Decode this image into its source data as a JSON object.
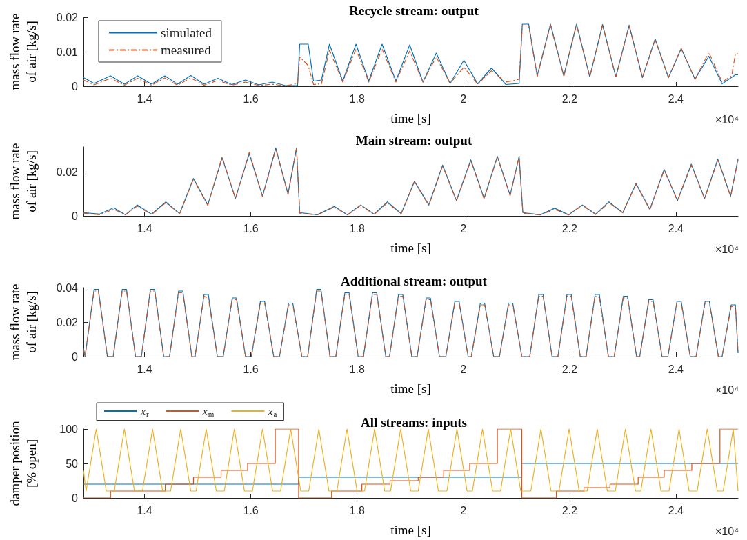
{
  "chart_data": [
    {
      "type": "line",
      "title": "Recycle stream: output",
      "xlabel": "time [s]",
      "ylabel": "mass flow rate of air [kg/s]",
      "xlim": [
        1.285,
        2.517
      ],
      "xticks": [
        1.4,
        1.6,
        1.8,
        2,
        2.2,
        2.4
      ],
      "ylim": [
        0,
        0.02
      ],
      "yticks": [
        0,
        0.01,
        0.02
      ],
      "legend": "top left",
      "marker": "none",
      "annotations": [
        "×10⁴"
      ],
      "series": [
        {
          "name": "simulated",
          "color": "#0072bd",
          "line_style": "solid",
          "x": [
            1.285,
            1.305,
            1.336,
            1.362,
            1.387,
            1.413,
            1.438,
            1.462,
            1.487,
            1.512,
            1.538,
            1.564,
            1.59,
            1.615,
            1.64,
            1.665,
            1.688,
            1.692,
            1.708,
            1.718,
            1.733,
            1.748,
            1.773,
            1.798,
            1.822,
            1.847,
            1.873,
            1.899,
            1.924,
            1.949,
            1.975,
            2.001,
            2.027,
            2.053,
            2.08,
            2.105,
            2.111,
            2.123,
            2.139,
            2.164,
            2.189,
            2.213,
            2.238,
            2.262,
            2.287,
            2.312,
            2.337,
            2.361,
            2.386,
            2.41,
            2.436,
            2.462,
            2.487,
            2.512,
            2.517
          ],
          "values": [
            0.0025,
            0.0008,
            0.003,
            0.0006,
            0.003,
            0.0006,
            0.003,
            0.0006,
            0.0031,
            0.0006,
            0.0023,
            0.0005,
            0.0018,
            0.0004,
            0.0012,
            0.0002,
            0.0002,
            0.0122,
            0.0122,
            0.0015,
            0.0018,
            0.0122,
            0.0015,
            0.0122,
            0.0015,
            0.0122,
            0.0015,
            0.012,
            0.0012,
            0.0096,
            0.0008,
            0.0075,
            0.0007,
            0.0053,
            0.0005,
            0.0008,
            0.018,
            0.018,
            0.003,
            0.018,
            0.003,
            0.018,
            0.0027,
            0.0179,
            0.0027,
            0.0177,
            0.0025,
            0.0137,
            0.0025,
            0.0109,
            0.002,
            0.0087,
            0.0007,
            0.0033,
            0.0033
          ]
        },
        {
          "name": "measured",
          "color": "#d95319",
          "line_style": "dashed",
          "x": [
            1.285,
            1.305,
            1.336,
            1.362,
            1.387,
            1.413,
            1.438,
            1.462,
            1.487,
            1.512,
            1.538,
            1.564,
            1.59,
            1.615,
            1.64,
            1.665,
            1.688,
            1.692,
            1.708,
            1.718,
            1.733,
            1.748,
            1.773,
            1.798,
            1.822,
            1.847,
            1.873,
            1.899,
            1.924,
            1.949,
            1.975,
            2.001,
            2.027,
            2.053,
            2.08,
            2.105,
            2.111,
            2.123,
            2.139,
            2.164,
            2.189,
            2.213,
            2.238,
            2.262,
            2.287,
            2.312,
            2.337,
            2.361,
            2.386,
            2.41,
            2.436,
            2.462,
            2.487,
            2.505,
            2.512,
            2.517
          ],
          "values": [
            0.0018,
            0.0004,
            0.0023,
            0.0003,
            0.0023,
            0.0003,
            0.0024,
            0.0003,
            0.0024,
            0.0003,
            0.0017,
            0.0003,
            0.0012,
            0.0002,
            0.0006,
            0.0001,
            0.0008,
            0.0085,
            0.006,
            0.0005,
            0.0007,
            0.0105,
            0.0012,
            0.0108,
            0.0012,
            0.0108,
            0.0012,
            0.0102,
            0.0012,
            0.0085,
            0.0008,
            0.0055,
            0.0006,
            0.0045,
            0.0012,
            0.002,
            0.0175,
            0.0175,
            0.0028,
            0.0178,
            0.0028,
            0.0178,
            0.0027,
            0.0176,
            0.0027,
            0.0175,
            0.0025,
            0.0135,
            0.0025,
            0.011,
            0.002,
            0.0098,
            0.0012,
            0.003,
            0.0094,
            0.0094
          ]
        }
      ]
    },
    {
      "type": "line",
      "title": "Main stream: output",
      "xlabel": "time [s]",
      "ylabel": "mass flow rate of air [kg/s]",
      "xlim": [
        1.285,
        2.517
      ],
      "xticks": [
        1.4,
        1.6,
        1.8,
        2,
        2.2,
        2.4
      ],
      "ylim": [
        0,
        0.0315
      ],
      "yticks": [
        0,
        0.02
      ],
      "marker": "none",
      "annotations": [
        "×10⁴"
      ],
      "x": [
        1.285,
        1.315,
        1.342,
        1.364,
        1.386,
        1.413,
        1.44,
        1.466,
        1.492,
        1.519,
        1.546,
        1.571,
        1.597,
        1.622,
        1.647,
        1.67,
        1.686,
        1.692,
        1.725,
        1.757,
        1.782,
        1.807,
        1.832,
        1.857,
        1.883,
        1.908,
        1.935,
        1.961,
        1.987,
        2.014,
        2.039,
        2.064,
        2.088,
        2.105,
        2.112,
        2.145,
        2.172,
        2.198,
        2.224,
        2.249,
        2.274,
        2.3,
        2.325,
        2.351,
        2.378,
        2.403,
        2.429,
        2.454,
        2.479,
        2.503,
        2.517
      ],
      "series": [
        {
          "color": "#0072bd",
          "line_style": "solid",
          "values": [
            0.0015,
            0.0008,
            0.0037,
            0.0005,
            0.005,
            0.0008,
            0.0064,
            0.001,
            0.0171,
            0.005,
            0.0265,
            0.008,
            0.0284,
            0.009,
            0.031,
            0.01,
            0.031,
            0.0015,
            0.0005,
            0.0043,
            0.0005,
            0.005,
            0.0008,
            0.0064,
            0.001,
            0.0158,
            0.005,
            0.0232,
            0.007,
            0.0256,
            0.008,
            0.0272,
            0.0094,
            0.0272,
            0.0015,
            0.0005,
            0.0035,
            0.0005,
            0.005,
            0.0008,
            0.0064,
            0.0015,
            0.0148,
            0.003,
            0.0212,
            0.007,
            0.0236,
            0.008,
            0.026,
            0.009,
            0.026
          ]
        },
        {
          "color": "#d95319",
          "line_style": "dashed",
          "values": [
            0.0012,
            0.0005,
            0.003,
            0.0004,
            0.0045,
            0.0006,
            0.006,
            0.001,
            0.0168,
            0.0048,
            0.027,
            0.0078,
            0.029,
            0.0088,
            0.0305,
            0.0098,
            0.031,
            0.0012,
            0.0004,
            0.004,
            0.0004,
            0.0048,
            0.0006,
            0.006,
            0.001,
            0.0155,
            0.0048,
            0.0228,
            0.0068,
            0.0252,
            0.0078,
            0.0268,
            0.0092,
            0.027,
            0.0012,
            0.0004,
            0.003,
            0.0004,
            0.0048,
            0.0006,
            0.006,
            0.0014,
            0.0145,
            0.0028,
            0.021,
            0.0068,
            0.0232,
            0.0078,
            0.0255,
            0.0088,
            0.0255
          ]
        }
      ]
    },
    {
      "type": "line",
      "title": "Additional stream: output",
      "xlabel": "time [s]",
      "ylabel": "mass flow rate of air [kg/s]",
      "xlim": [
        1.285,
        2.517
      ],
      "xticks": [
        1.4,
        1.6,
        1.8,
        2,
        2.2,
        2.4
      ],
      "ylim": [
        0,
        0.04
      ],
      "yticks": [
        0,
        0.02,
        0.04
      ],
      "marker": "none",
      "annotations": [
        "×10⁴"
      ],
      "x": [
        1.285,
        1.288,
        1.305,
        1.313,
        1.33,
        1.341,
        1.358,
        1.366,
        1.383,
        1.394,
        1.411,
        1.419,
        1.436,
        1.447,
        1.464,
        1.472,
        1.489,
        1.495,
        1.512,
        1.52,
        1.537,
        1.548,
        1.565,
        1.573,
        1.59,
        1.601,
        1.618,
        1.626,
        1.643,
        1.654,
        1.671,
        1.679,
        1.696,
        1.707,
        1.724,
        1.732,
        1.749,
        1.76,
        1.777,
        1.785,
        1.802,
        1.812,
        1.829,
        1.837,
        1.854,
        1.861,
        1.878,
        1.886,
        1.903,
        1.913,
        1.93,
        1.938,
        1.955,
        1.967,
        1.984,
        1.992,
        2.009,
        2.015,
        2.032,
        2.04,
        2.057,
        2.068,
        2.085,
        2.093,
        2.11,
        2.125,
        2.142,
        2.15,
        2.167,
        2.178,
        2.195,
        2.203,
        2.22,
        2.231,
        2.248,
        2.256,
        2.273,
        2.284,
        2.301,
        2.309,
        2.326,
        2.332,
        2.349,
        2.357,
        2.374,
        2.385,
        2.402,
        2.41,
        2.427,
        2.438,
        2.455,
        2.463,
        2.48,
        2.487,
        2.504,
        2.512,
        2.517
      ],
      "series": [
        {
          "color": "#0072bd",
          "line_style": "solid",
          "values": [
            0.005,
            0,
            0.039,
            0.039,
            0,
            0,
            0.039,
            0.039,
            0,
            0,
            0.039,
            0.039,
            0,
            0,
            0.038,
            0.038,
            0,
            0,
            0.036,
            0.036,
            0,
            0,
            0.034,
            0.034,
            0,
            0,
            0.032,
            0.032,
            0,
            0,
            0.031,
            0.031,
            0,
            0,
            0.039,
            0.039,
            0,
            0,
            0.037,
            0.037,
            0,
            0,
            0.037,
            0.037,
            0,
            0,
            0.036,
            0.036,
            0,
            0,
            0.034,
            0.034,
            0,
            0,
            0.032,
            0.032,
            0,
            0,
            0.031,
            0.031,
            0,
            0,
            0.031,
            0.031,
            0,
            0,
            0.036,
            0.036,
            0,
            0,
            0.036,
            0.036,
            0,
            0,
            0.036,
            0.036,
            0,
            0,
            0.035,
            0.035,
            0,
            0,
            0.033,
            0.033,
            0,
            0,
            0.032,
            0.032,
            0,
            0,
            0.032,
            0.032,
            0,
            0,
            0.03,
            0.03,
            0.002
          ]
        },
        {
          "color": "#d95319",
          "line_style": "dashed",
          "values": [
            0.004,
            0,
            0.038,
            0.038,
            0,
            0,
            0.038,
            0.038,
            0,
            0,
            0.038,
            0.038,
            0,
            0,
            0.037,
            0.037,
            0,
            0,
            0.035,
            0.034,
            0,
            0,
            0.033,
            0.033,
            0,
            0,
            0.031,
            0.031,
            0,
            0,
            0.03,
            0.03,
            0,
            0,
            0.038,
            0.038,
            0,
            0,
            0.036,
            0.036,
            0,
            0,
            0.036,
            0.036,
            0,
            0,
            0.035,
            0.035,
            0,
            0,
            0.033,
            0.033,
            0,
            0,
            0.031,
            0.031,
            0,
            0,
            0.03,
            0.03,
            0,
            0,
            0.03,
            0.03,
            0,
            0,
            0.035,
            0.035,
            0,
            0,
            0.035,
            0.035,
            0,
            0,
            0.035,
            0.034,
            0,
            0,
            0.034,
            0.034,
            0,
            0,
            0.032,
            0.032,
            0,
            0,
            0.031,
            0.031,
            0,
            0,
            0.031,
            0.031,
            0,
            0,
            0.029,
            0.029,
            0.003
          ]
        }
      ]
    },
    {
      "type": "step",
      "title": "All streams: inputs",
      "xlabel": "time [s]",
      "ylabel": "damper position [% open]",
      "xlim": [
        1.285,
        2.517
      ],
      "xticks": [
        1.4,
        1.6,
        1.8,
        2,
        2.2,
        2.4
      ],
      "ylim": [
        0,
        100
      ],
      "yticks": [
        0,
        50,
        100
      ],
      "legend": "top left",
      "marker": "none",
      "line_style": "solid",
      "annotations": [
        "×10⁴"
      ],
      "series": [
        {
          "name": "x$_{r}$",
          "color": "#0072bd",
          "x": [
            1.285,
            1.69,
            2.11,
            2.517
          ],
          "values": [
            20,
            30,
            50,
            50
          ]
        },
        {
          "name": "x$_{m}$",
          "color": "#d95319",
          "x": [
            1.285,
            1.336,
            1.439,
            1.492,
            1.544,
            1.594,
            1.646,
            1.69,
            1.752,
            1.809,
            1.862,
            1.915,
            1.963,
            2.012,
            2.064,
            2.11,
            2.175,
            2.227,
            2.276,
            2.329,
            2.378,
            2.43,
            2.483,
            2.517
          ],
          "values": [
            0,
            10,
            20,
            30,
            40,
            50,
            100,
            0,
            10,
            20,
            25,
            30,
            40,
            50,
            100,
            0,
            10,
            15,
            20,
            30,
            40,
            50,
            100,
            100
          ]
        },
        {
          "name": "x$_{a}$",
          "color": "#edb120",
          "type": "line",
          "x": [
            1.285,
            1.29,
            1.309,
            1.328,
            1.343,
            1.362,
            1.381,
            1.396,
            1.415,
            1.434,
            1.449,
            1.468,
            1.487,
            1.497,
            1.516,
            1.535,
            1.55,
            1.569,
            1.588,
            1.603,
            1.622,
            1.641,
            1.656,
            1.675,
            1.694,
            1.709,
            1.728,
            1.747,
            1.762,
            1.781,
            1.8,
            1.814,
            1.833,
            1.852,
            1.863,
            1.882,
            1.901,
            1.915,
            1.934,
            1.953,
            1.969,
            1.988,
            2.007,
            2.017,
            2.036,
            2.055,
            2.07,
            2.089,
            2.108,
            2.127,
            2.146,
            2.165,
            2.18,
            2.199,
            2.218,
            2.233,
            2.252,
            2.271,
            2.286,
            2.305,
            2.324,
            2.334,
            2.353,
            2.372,
            2.387,
            2.406,
            2.425,
            2.44,
            2.459,
            2.478,
            2.489,
            2.508,
            2.517
          ],
          "values": [
            40,
            10,
            100,
            10,
            10,
            100,
            10,
            10,
            100,
            10,
            10,
            100,
            10,
            10,
            100,
            10,
            10,
            100,
            10,
            10,
            100,
            10,
            10,
            100,
            10,
            10,
            100,
            10,
            10,
            100,
            10,
            10,
            100,
            10,
            10,
            100,
            10,
            10,
            100,
            10,
            10,
            100,
            10,
            10,
            100,
            10,
            10,
            100,
            10,
            10,
            100,
            10,
            10,
            100,
            10,
            10,
            100,
            10,
            10,
            100,
            10,
            10,
            100,
            10,
            10,
            100,
            10,
            10,
            100,
            10,
            10,
            100,
            10
          ]
        }
      ]
    }
  ]
}
